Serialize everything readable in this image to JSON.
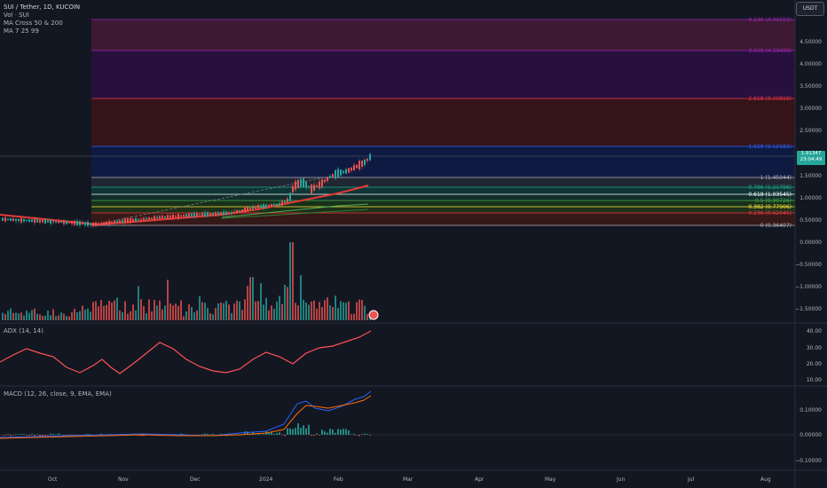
{
  "header": {
    "symbol": "SUI / Tether, 1D, KUCOIN",
    "volume": "Vol · SUI",
    "ma_cross": "MA Cross 50 & 200",
    "ma": "MA 7 25 99"
  },
  "currency_button": "USDT",
  "price_tag": {
    "price": "1.91347",
    "countdown": "23:04:49"
  },
  "price_axis": [
    "4.50000",
    "4.00000",
    "3.50000",
    "3.00000",
    "2.50000",
    "2.00000",
    "1.50000",
    "1.00000",
    "0.50000",
    "0.00000",
    "−0.50000",
    "−1.00000",
    "−1.50000"
  ],
  "fib_levels": [
    {
      "label": "4.236 (4.96593)",
      "color": "#9c27b0"
    },
    {
      "label": "3.618 (4.29456)",
      "color": "#9c27b0"
    },
    {
      "label": "2.618 (3.20819)",
      "color": "#f23645"
    },
    {
      "label": "1.618 (2.12182)",
      "color": "#2962ff"
    },
    {
      "label": "1 (1.45044)",
      "color": "#b2b5be"
    },
    {
      "label": "0.786 (1.21796)",
      "color": "#22ab94"
    },
    {
      "label": "0.618 (1.03545)",
      "color": "#ffffff"
    },
    {
      "label": "0.5 (0.90726)",
      "color": "#4caf50"
    },
    {
      "label": "0.382 (0.77906)",
      "color": "#ffeb3b"
    },
    {
      "label": "0.236 (0.62045)",
      "color": "#f23645"
    },
    {
      "label": "0 (0.36407)",
      "color": "#b2b5be"
    }
  ],
  "adx": {
    "label": "ADX (14, 14)",
    "axis": [
      "40.00",
      "30.00",
      "20.00",
      "10.00"
    ]
  },
  "macd": {
    "label": "MACD (12, 26, close, 9, EMA, EMA)",
    "axis": [
      "0.10000",
      "0.00000",
      "−0.10000"
    ]
  },
  "time_axis": [
    "Oct",
    "Nov",
    "Dec",
    "2024",
    "Feb",
    "Mar",
    "Apr",
    "May",
    "Jun",
    "Jul",
    "Aug"
  ],
  "colors": {
    "up": "#26a69a",
    "down": "#ef5350",
    "background": "#131722"
  }
}
